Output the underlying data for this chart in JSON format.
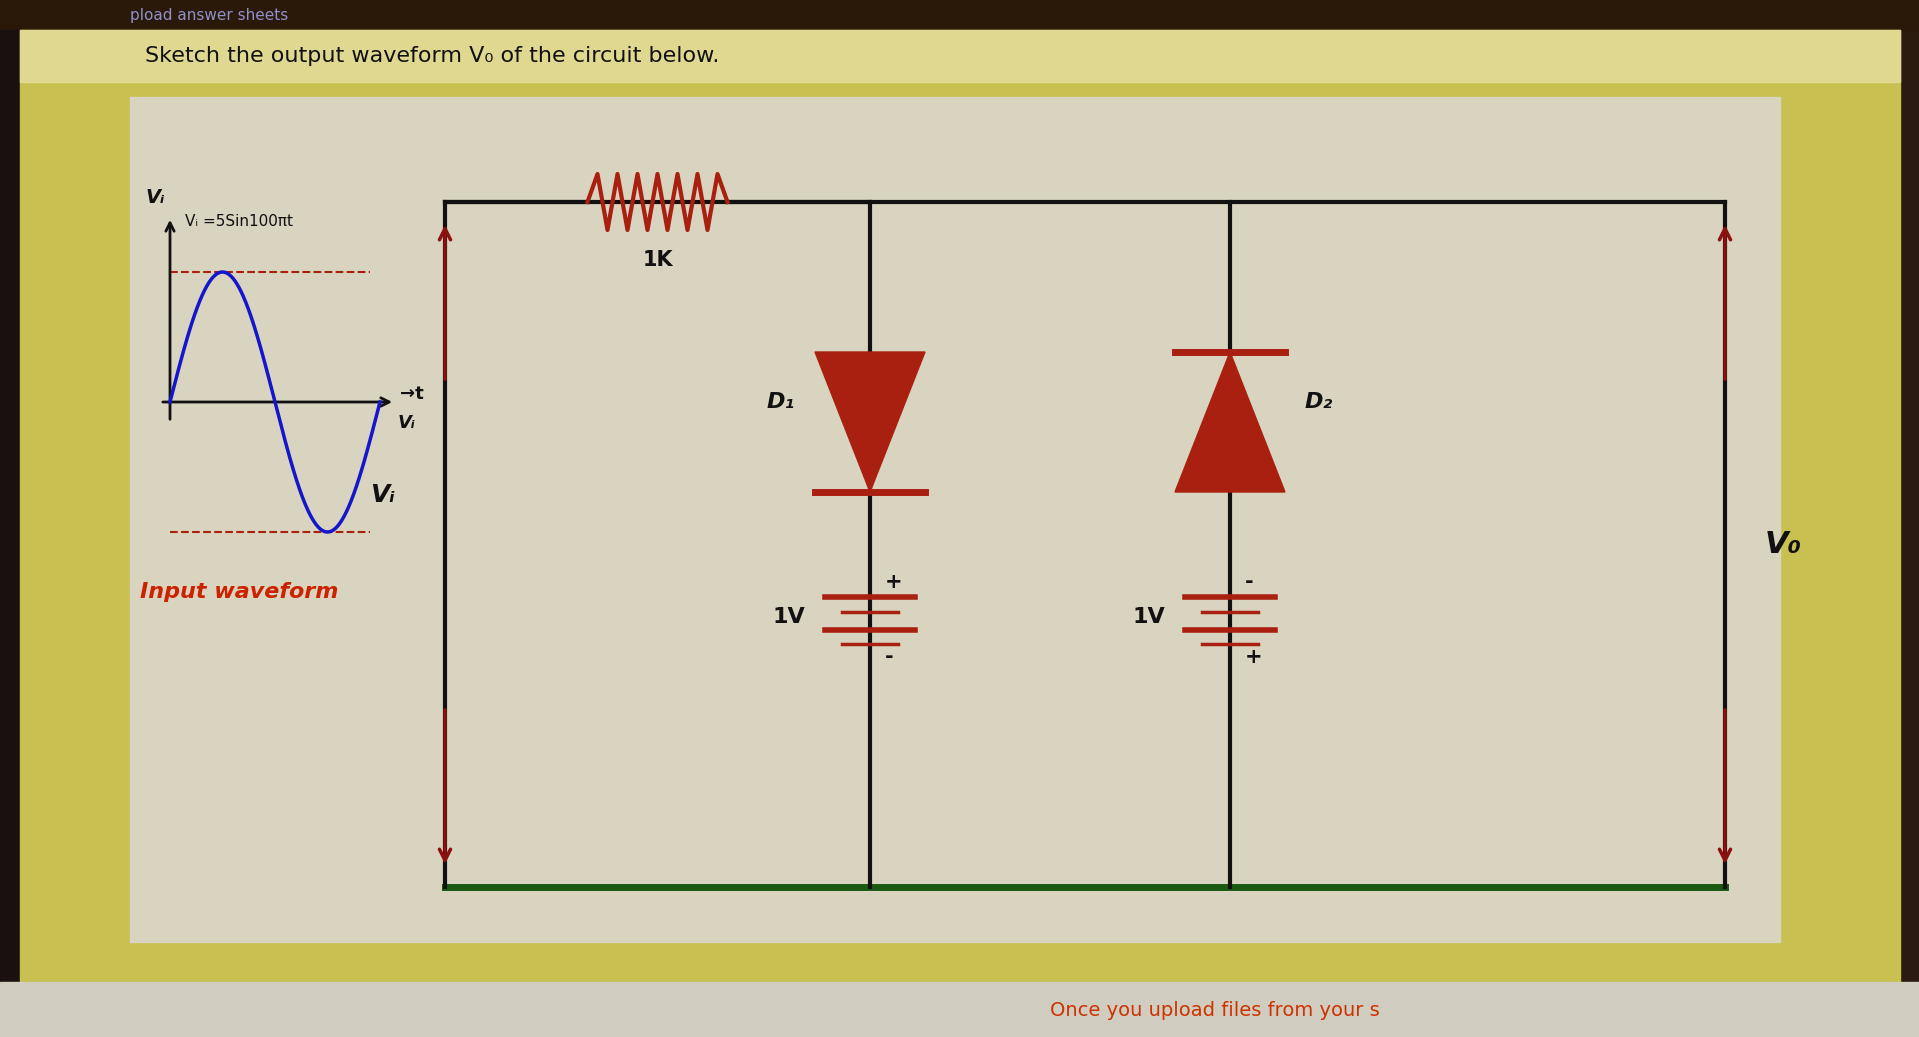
{
  "bg_outer_top": "#2a1a10",
  "bg_outer_left": "#1a1010",
  "bg_yellow": "#c8c050",
  "bg_circuit": "#d8d4c0",
  "bg_title_strip": "#e0d890",
  "header_color": "#2a1808",
  "header_text": "pload answer sheets",
  "header_text_color": "#9090cc",
  "title_text": "Sketch the output waveform V₀ of the circuit below.",
  "title_color": "#111111",
  "title_fontsize": 16,
  "footer_bg": "#d0ccc0",
  "footer_text": "Once you upload files from your s",
  "footer_text_color": "#cc3300",
  "footer_fontsize": 14,
  "dark_red": "#8b1010",
  "dark_red2": "#aa2010",
  "dark_green": "#1a5a10",
  "black": "#111111",
  "blue_wave": "#1515cc",
  "input_label_color": "#cc2200",
  "resistor_label": "1K",
  "d1_label": "D₁",
  "d2_label": "D₂",
  "v1_label": "1V",
  "v2_label": "1V",
  "vo_label": "V₀",
  "vi_label": "Vᵢ",
  "vi_eq": "Vᵢ =5Sin100πt",
  "t_label": "→t",
  "vi_axis_label": "Vᵢ",
  "input_waveform_label": "Input waveform",
  "lw_main": 3.0,
  "lw_green": 5.0,
  "arrow_color": "#8b1010"
}
